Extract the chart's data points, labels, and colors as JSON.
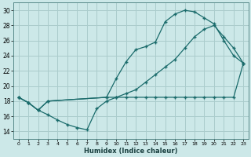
{
  "xlabel": "Humidex (Indice chaleur)",
  "bg_color": "#cce8e8",
  "grid_color": "#aacccc",
  "line_color": "#1a6b6b",
  "xlim": [
    -0.5,
    23.5
  ],
  "ylim": [
    13,
    31
  ],
  "xticks": [
    0,
    1,
    2,
    3,
    4,
    5,
    6,
    7,
    8,
    9,
    10,
    11,
    12,
    13,
    14,
    15,
    16,
    17,
    18,
    19,
    20,
    21,
    22,
    23
  ],
  "yticks": [
    14,
    16,
    18,
    20,
    22,
    24,
    26,
    28,
    30
  ],
  "line1_x": [
    0,
    1,
    2,
    3,
    4,
    5,
    6,
    7,
    8,
    9,
    10,
    11,
    12,
    13,
    14,
    15,
    16,
    17,
    18,
    19,
    20,
    21,
    22,
    23
  ],
  "line1_y": [
    18.5,
    17.8,
    16.8,
    16.2,
    15.5,
    14.9,
    14.5,
    14.2,
    17.0,
    18.0,
    18.5,
    18.5,
    18.5,
    18.5,
    18.5,
    18.5,
    18.5,
    18.5,
    18.5,
    18.5,
    18.5,
    18.5,
    18.5,
    23.0
  ],
  "line2_x": [
    0,
    1,
    2,
    3,
    9,
    10,
    11,
    12,
    13,
    14,
    15,
    16,
    17,
    18,
    19,
    20,
    21,
    22,
    23
  ],
  "line2_y": [
    18.5,
    17.8,
    16.8,
    18.0,
    18.5,
    21.0,
    23.2,
    24.8,
    25.2,
    25.8,
    28.5,
    29.5,
    30.0,
    29.8,
    29.0,
    28.2,
    26.0,
    24.0,
    23.0
  ],
  "line3_x": [
    0,
    1,
    2,
    3,
    9,
    10,
    11,
    12,
    13,
    14,
    15,
    16,
    17,
    18,
    19,
    20,
    21,
    22,
    23
  ],
  "line3_y": [
    18.5,
    17.8,
    16.8,
    18.0,
    18.5,
    18.5,
    19.0,
    19.5,
    20.5,
    21.5,
    22.5,
    23.5,
    25.0,
    26.5,
    27.5,
    28.0,
    26.5,
    25.0,
    23.0
  ]
}
